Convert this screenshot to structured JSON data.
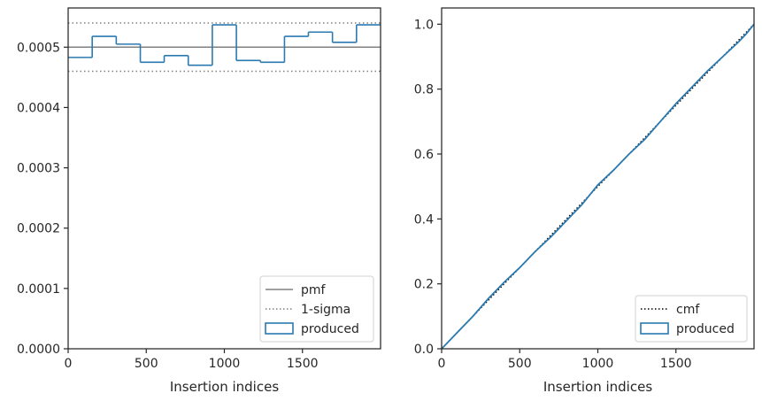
{
  "chart_data": [
    {
      "type": "line",
      "title": "",
      "xlabel": "Insertion indices",
      "ylabel": "",
      "xlim": [
        0,
        2000
      ],
      "ylim": [
        0,
        0.000565
      ],
      "xticks": [
        0,
        500,
        1000,
        1500
      ],
      "xtick_labels": [
        "0",
        "500",
        "1000",
        "1500"
      ],
      "yticks": [
        0,
        0.0001,
        0.0002,
        0.0003,
        0.0004,
        0.0005
      ],
      "ytick_labels": [
        "0.0000",
        "0.0001",
        "0.0002",
        "0.0003",
        "0.0004",
        "0.0005"
      ],
      "grid": false,
      "legend_position": "lower-right",
      "pmf": 0.0005,
      "sigma_band": [
        0.00046,
        0.00054
      ],
      "histogram": {
        "bin_edges": [
          0,
          154,
          308,
          462,
          615,
          769,
          923,
          1077,
          1231,
          1385,
          1538,
          1692,
          1846,
          2000
        ],
        "values": [
          0.000483,
          0.000518,
          0.000505,
          0.000475,
          0.000486,
          0.00047,
          0.000537,
          0.000478,
          0.000475,
          0.000518,
          0.000525,
          0.000508,
          0.000537
        ]
      },
      "legend": [
        {
          "label": "pmf",
          "style": "solid-line",
          "color": "#808080"
        },
        {
          "label": "1-sigma",
          "style": "dotted-line",
          "color": "#808080"
        },
        {
          "label": "produced",
          "style": "box",
          "color": "#2a7ab0"
        }
      ]
    },
    {
      "type": "line",
      "title": "",
      "xlabel": "Insertion indices",
      "ylabel": "",
      "xlim": [
        0,
        2000
      ],
      "ylim": [
        0,
        1.05
      ],
      "xticks": [
        0,
        500,
        1000,
        1500
      ],
      "xtick_labels": [
        "0",
        "500",
        "1000",
        "1500"
      ],
      "yticks": [
        0,
        0.2,
        0.4,
        0.6,
        0.8,
        1.0
      ],
      "ytick_labels": [
        "0.0",
        "0.2",
        "0.4",
        "0.6",
        "0.8",
        "1.0"
      ],
      "grid": false,
      "legend_position": "lower-right",
      "series": [
        {
          "name": "cmf",
          "style": "dotted",
          "color": "#000000",
          "x": [
            0,
            2000
          ],
          "y": [
            0,
            1.0
          ]
        },
        {
          "name": "produced",
          "style": "solid",
          "color": "#2a7ab0",
          "x": [
            0,
            100,
            200,
            300,
            400,
            500,
            600,
            700,
            800,
            900,
            1000,
            1100,
            1200,
            1300,
            1400,
            1500,
            1600,
            1700,
            1800,
            1900,
            1950,
            2000
          ],
          "y": [
            0,
            0.05,
            0.1,
            0.155,
            0.205,
            0.25,
            0.3,
            0.345,
            0.395,
            0.445,
            0.505,
            0.55,
            0.6,
            0.645,
            0.7,
            0.755,
            0.805,
            0.855,
            0.9,
            0.945,
            0.97,
            1.0
          ]
        }
      ],
      "legend": [
        {
          "label": "cmf",
          "style": "dotted-line",
          "color": "#000000"
        },
        {
          "label": "produced",
          "style": "box",
          "color": "#2a7ab0"
        }
      ]
    }
  ]
}
